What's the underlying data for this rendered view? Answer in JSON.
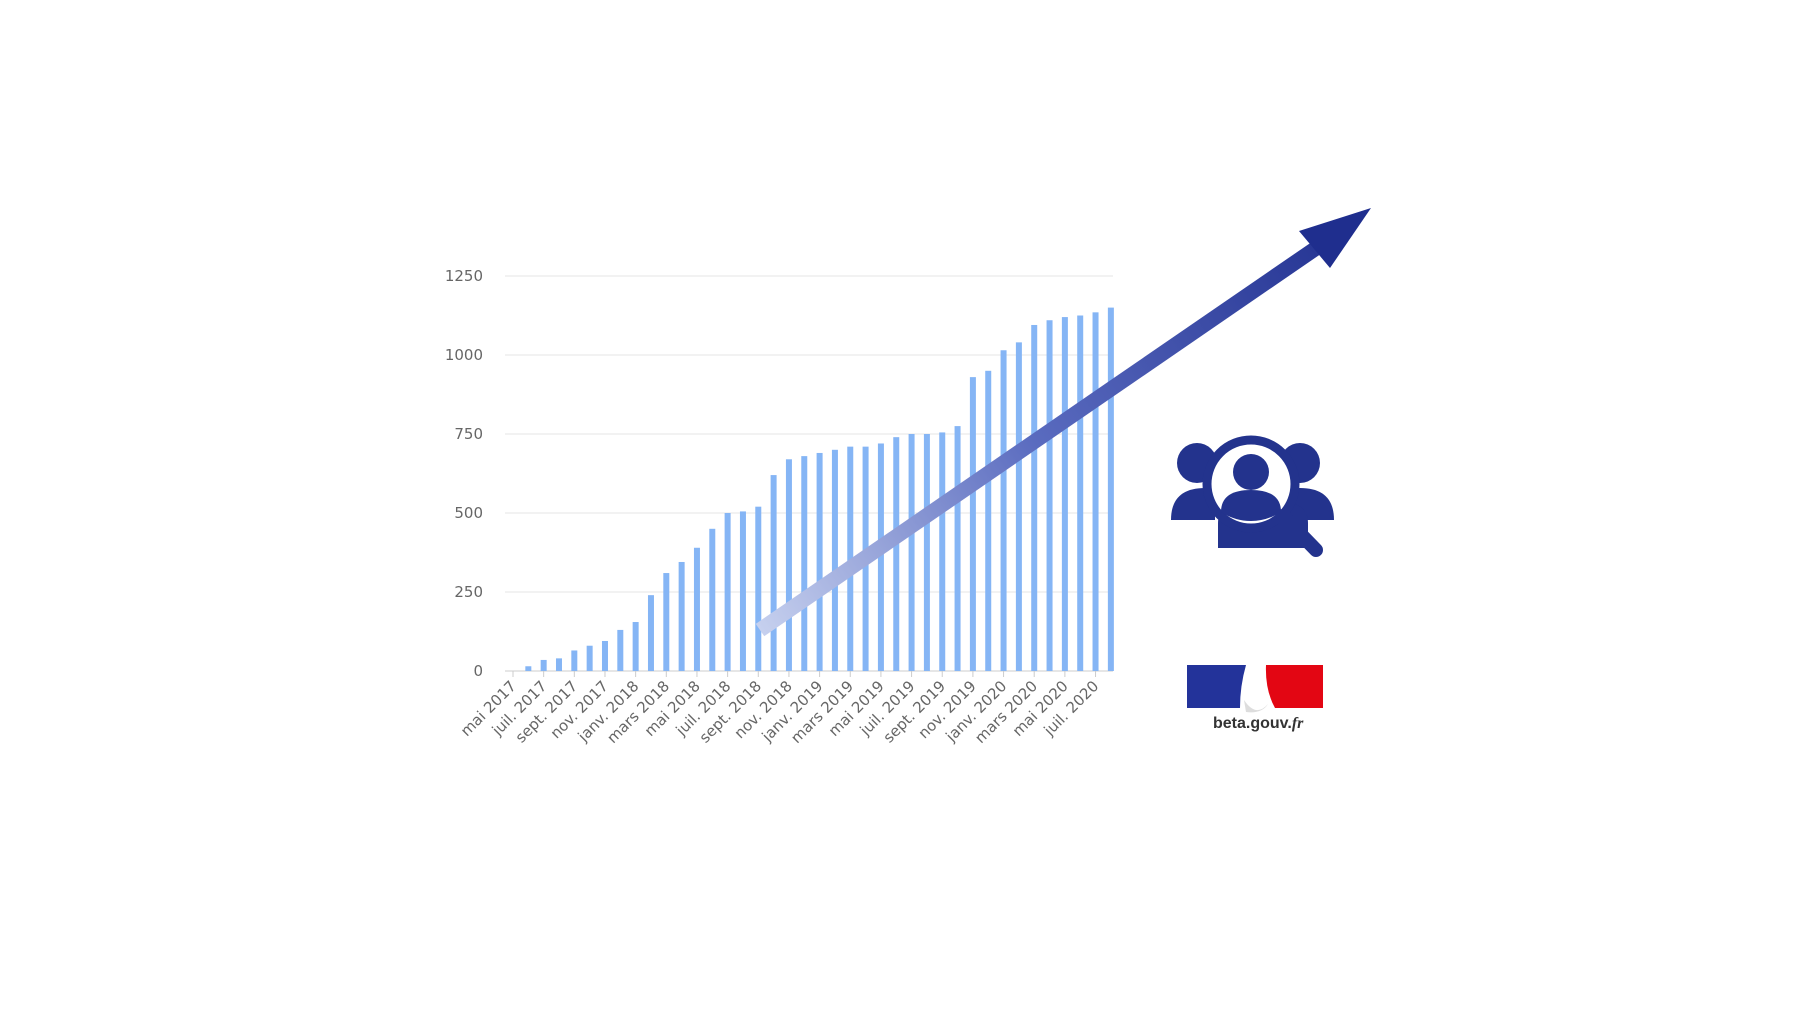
{
  "chart_data": {
    "type": "bar",
    "title": "",
    "xlabel": "",
    "ylabel": "",
    "ylim": [
      0,
      1250
    ],
    "y_ticks": [
      "0",
      "250",
      "500",
      "750",
      "1000",
      "1250"
    ],
    "grid": true,
    "bar_color": "#85b5f5",
    "x_tick_labels": [
      "mai 2017",
      "juil. 2017",
      "sept. 2017",
      "nov. 2017",
      "janv. 2018",
      "mars 2018",
      "mai 2018",
      "juil. 2018",
      "sept. 2018",
      "nov. 2018",
      "janv. 2019",
      "mars 2019",
      "mai 2019",
      "juil. 2019",
      "sept. 2019",
      "nov. 2019",
      "janv. 2020",
      "mars 2020",
      "mai 2020",
      "juil. 2020"
    ],
    "categories": [
      "mai 2017",
      "juin 2017",
      "juil. 2017",
      "août 2017",
      "sept. 2017",
      "oct. 2017",
      "nov. 2017",
      "déc. 2017",
      "janv. 2018",
      "févr. 2018",
      "mars 2018",
      "avr. 2018",
      "mai 2018",
      "juin 2018",
      "juil. 2018",
      "août 2018",
      "sept. 2018",
      "oct. 2018",
      "nov. 2018",
      "déc. 2018",
      "janv. 2019",
      "févr. 2019",
      "mars 2019",
      "avr. 2019",
      "mai 2019",
      "juin 2019",
      "juil. 2019",
      "août 2019",
      "sept. 2019",
      "oct. 2019",
      "nov. 2019",
      "déc. 2019",
      "janv. 2020",
      "févr. 2020",
      "mars 2020",
      "avr. 2020",
      "mai 2020",
      "juin 2020",
      "juil. 2020",
      "août 2020"
    ],
    "values": [
      0,
      15,
      35,
      40,
      65,
      80,
      95,
      130,
      155,
      240,
      310,
      345,
      390,
      450,
      500,
      505,
      520,
      620,
      670,
      680,
      690,
      700,
      710,
      710,
      720,
      740,
      750,
      750,
      755,
      775,
      930,
      950,
      1015,
      1040,
      1095,
      1110,
      1120,
      1125,
      1135,
      1150
    ]
  },
  "overlay": {
    "trend_arrow_color": "#1f2e8e",
    "trend_arrow_start_color": "#c6d0ee"
  },
  "icons": {
    "people_search": "people-search-icon",
    "people_search_color": "#23338d"
  },
  "logo": {
    "text_main": "beta.gouv.",
    "text_suffix": "fr",
    "blue": "#23339a",
    "red": "#e30613"
  }
}
